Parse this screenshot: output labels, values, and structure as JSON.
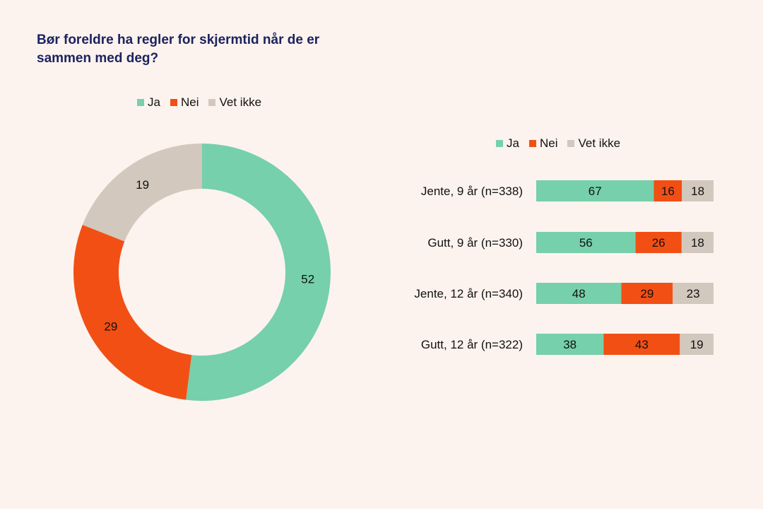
{
  "chart_data": [
    {
      "type": "pie",
      "title": "Bør foreldre ha regler for skjermtid når de er sammen med deg?",
      "legend": {
        "position": "top",
        "entries": [
          "Ja",
          "Nei",
          "Vet ikke"
        ]
      },
      "categories": [
        "Ja",
        "Nei",
        "Vet ikke"
      ],
      "values": [
        52,
        29,
        19
      ],
      "colors": [
        "#76d0ab",
        "#f24f14",
        "#d2c8bd"
      ],
      "hole": true
    },
    {
      "type": "bar",
      "orientation": "horizontal",
      "stacked": "percent",
      "legend": {
        "position": "top",
        "entries": [
          "Ja",
          "Nei",
          "Vet ikke"
        ]
      },
      "categories": [
        "Jente, 9 år (n=338)",
        "Gutt, 9 år (n=330)",
        "Jente, 12 år (n=340)",
        "Gutt, 12 år (n=322)"
      ],
      "series": [
        {
          "name": "Ja",
          "values": [
            67,
            56,
            48,
            38
          ],
          "color": "#76d0ab"
        },
        {
          "name": "Nei",
          "values": [
            16,
            26,
            29,
            43
          ],
          "color": "#f24f14"
        },
        {
          "name": "Vet ikke",
          "values": [
            18,
            18,
            23,
            19
          ],
          "color": "#d2c8bd"
        }
      ]
    }
  ]
}
